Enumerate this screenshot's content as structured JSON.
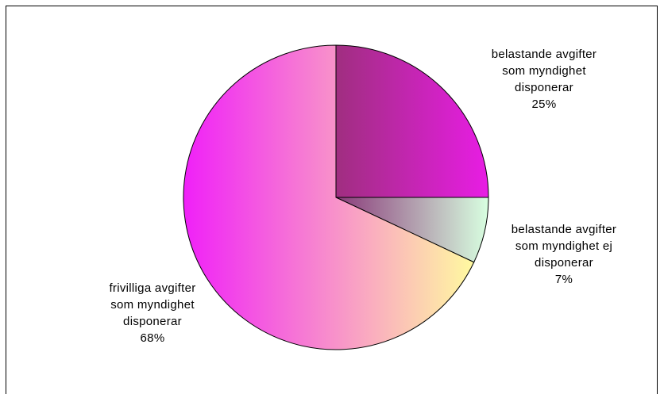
{
  "chart_data": {
    "type": "pie",
    "slices": [
      {
        "label": "belastande avgifter som myndighet disponerar",
        "value": 25,
        "display": "25%",
        "lines": [
          "belastande avgifter",
          "som myndighet",
          "disponerar",
          "25%"
        ],
        "gradient": [
          "#a02e80",
          "#e81de4"
        ]
      },
      {
        "label": "belastande avgifter som myndighet ej disponerar",
        "value": 7,
        "display": "7%",
        "lines": [
          "belastande avgifter",
          "som myndighet ej",
          "disponerar",
          "7%"
        ],
        "gradient": [
          "#8a3a7a",
          "#d8ffe0"
        ]
      },
      {
        "label": "frivilliga avgifter som myndighet disponerar",
        "value": 68,
        "display": "68%",
        "lines": [
          "frivilliga avgifter",
          "som myndighet",
          "disponerar",
          "68%"
        ],
        "gradient": [
          "#f020f8",
          "#fffaa0"
        ]
      }
    ],
    "start_angle": "top",
    "direction": "clockwise",
    "legend": "none"
  }
}
